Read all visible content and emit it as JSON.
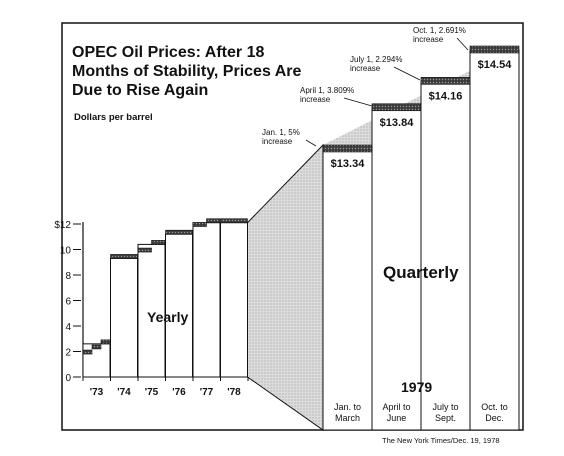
{
  "chart_data": {
    "type": "bar",
    "title": "OPEC Oil Prices: After 18 Months of Stability, Prices Are Due to Rise Again",
    "title_lines": [
      "OPEC Oil Prices: After 18",
      "Months of Stability, Prices Are",
      "Due to Rise Again"
    ],
    "ylabel": "Dollars per barrel",
    "ylim": [
      0,
      12
    ],
    "y_ticks": [
      {
        "value": 0,
        "label": "0"
      },
      {
        "value": 2,
        "label": "2"
      },
      {
        "value": 4,
        "label": "4"
      },
      {
        "value": 6,
        "label": "6"
      },
      {
        "value": 8,
        "label": "8"
      },
      {
        "value": 10,
        "label": "10"
      },
      {
        "value": 12,
        "label": "$12"
      }
    ],
    "yearly": {
      "label": "Yearly",
      "categories": [
        "'73",
        "'74",
        "'75",
        "'76",
        "'77",
        "'78"
      ],
      "steps": [
        [
          1.8,
          2.2,
          2.6
        ],
        [
          9.3
        ],
        [
          9.8,
          10.4
        ],
        [
          11.2
        ],
        [
          11.8,
          12.1
        ],
        [
          12.1
        ]
      ]
    },
    "quarterly": {
      "label": "Quarterly",
      "year_label": "1979",
      "categories": [
        "Jan. to\nMarch",
        "April to\nJune",
        "July to\nSept.",
        "Oct. to\nDec."
      ],
      "values": [
        13.34,
        13.84,
        14.16,
        14.54
      ],
      "value_labels": [
        "$13.34",
        "$13.84",
        "$14.16",
        "$14.54"
      ],
      "annotations": [
        "Jan. 1, 5%\nincrease",
        "April 1, 3.809%\nincrease",
        "July 1, 2.294%\nincrease",
        "Oct. 1, 2.691%\nincrease"
      ]
    },
    "source": "The New York Times/Dec. 19, 1978"
  }
}
